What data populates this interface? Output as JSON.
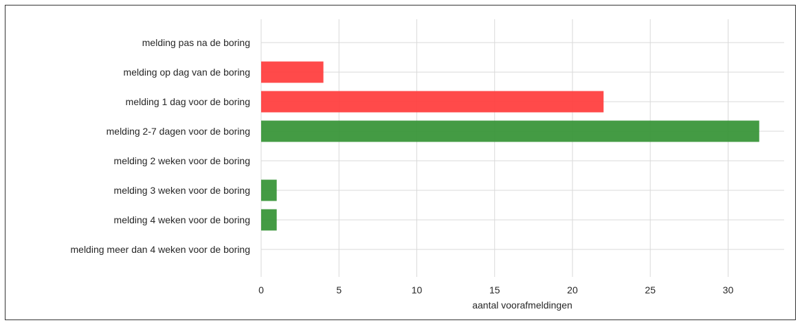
{
  "chart_data": {
    "type": "bar",
    "orientation": "horizontal",
    "categories": [
      "melding pas na de boring",
      "melding op dag van de boring",
      "melding 1 dag voor de boring",
      "melding 2-7 dagen voor de boring",
      "melding 2 weken voor de boring",
      "melding 3 weken voor de boring",
      "melding 4 weken voor de boring",
      "melding meer dan 4 weken voor de boring"
    ],
    "values": [
      0,
      4,
      22,
      32,
      0,
      1,
      1,
      0
    ],
    "bar_colors": [
      "#ff4040",
      "#ff4040",
      "#ff4040",
      "#3a963a",
      "#3a963a",
      "#3a963a",
      "#3a963a",
      "#3a963a"
    ],
    "xlabel": "aantal voorafmeldingen",
    "ylabel": "",
    "title": "",
    "xlim": [
      0,
      33.6
    ],
    "xticks": [
      0,
      5,
      10,
      15,
      20,
      25,
      30
    ],
    "grid": true
  }
}
